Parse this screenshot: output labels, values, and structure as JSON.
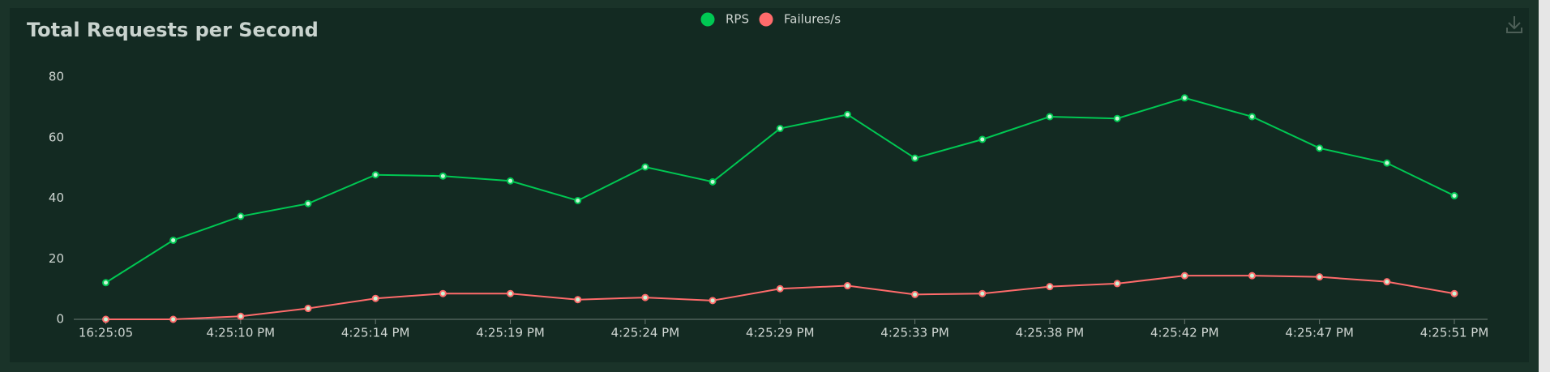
{
  "chart_data": {
    "type": "line",
    "title": "Total Requests per Second",
    "categories": [
      "16:25:05",
      null,
      "4:25:10 PM",
      null,
      "4:25:14 PM",
      null,
      "4:25:19 PM",
      null,
      "4:25:24 PM",
      null,
      "4:25:29 PM",
      null,
      "4:25:33 PM",
      null,
      "4:25:38 PM",
      null,
      "4:25:42 PM",
      null,
      "4:25:47 PM",
      null,
      "4:25:51 PM"
    ],
    "series": [
      {
        "name": "RPS",
        "color": "#00c853",
        "values": [
          12.1,
          26.1,
          34,
          38.2,
          47.7,
          47.3,
          45.7,
          39.2,
          50.3,
          45.4,
          63,
          67.6,
          53.2,
          59.4,
          66.9,
          66.3,
          73.1,
          66.9,
          56.5,
          51.6,
          40.8
        ]
      },
      {
        "name": "Failures/s",
        "color": "#ff6b6b",
        "values": [
          0,
          0,
          1,
          3.6,
          6.9,
          8.5,
          8.5,
          6.5,
          7.2,
          6.2,
          10.1,
          11.1,
          8.2,
          8.5,
          10.8,
          11.8,
          14.4,
          14.4,
          14,
          12.4,
          8.5
        ]
      }
    ],
    "ylim": [
      0,
      80
    ],
    "yticks": [
      0,
      20,
      40,
      60,
      80
    ],
    "legend": "top"
  }
}
